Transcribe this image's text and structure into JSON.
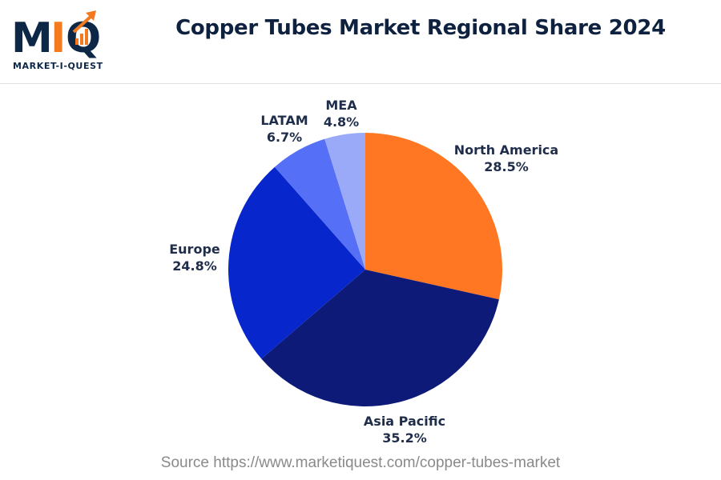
{
  "logo": {
    "letters": "MIQ",
    "tagline": "MARKET-I-QUEST"
  },
  "colors": {
    "north_america": "#ff7722",
    "asia_pacific": "#0d1a78",
    "europe": "#0727cc",
    "latam": "#556ff6",
    "mea": "#9aaaf8",
    "title_text": "#0e2240"
  },
  "source_text": "Source https://www.marketiquest.com/copper-tubes-market",
  "chart_data": {
    "type": "pie",
    "title": "Copper Tubes Market Regional Share 2024",
    "slices": [
      {
        "label": "North America",
        "value": 28.5,
        "display": "28.5%",
        "color": "#ff7722"
      },
      {
        "label": "Asia Pacific",
        "value": 35.2,
        "display": "35.2%",
        "color": "#0d1a78"
      },
      {
        "label": "Europe",
        "value": 24.8,
        "display": "24.8%",
        "color": "#0727cc"
      },
      {
        "label": "LATAM",
        "value": 6.7,
        "display": "6.7%",
        "color": "#556ff6"
      },
      {
        "label": "MEA",
        "value": 4.8,
        "display": "4.8%",
        "color": "#9aaaf8"
      }
    ],
    "start_angle": "12 o'clock",
    "direction": "clockwise",
    "legend": "none"
  }
}
